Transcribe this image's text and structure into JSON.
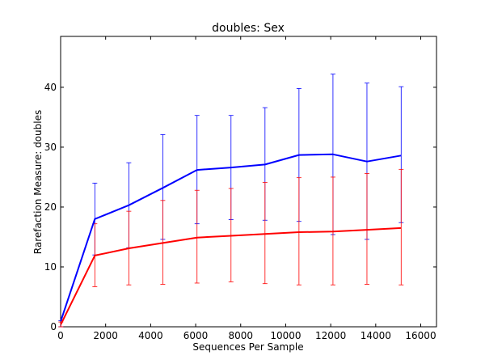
{
  "chart_data": {
    "type": "line",
    "title": "doubles: Sex",
    "xlabel": "Sequences Per Sample",
    "ylabel": "Rarefaction Measure: doubles",
    "xlim": [
      0,
      16700
    ],
    "ylim": [
      0,
      48.5
    ],
    "xticks": [
      0,
      2000,
      4000,
      6000,
      8000,
      10000,
      12000,
      14000,
      16000
    ],
    "yticks": [
      0,
      10,
      20,
      30,
      40
    ],
    "grid": false,
    "legend": "none",
    "x": [
      10,
      1520,
      3030,
      4540,
      6060,
      7570,
      9080,
      10590,
      12100,
      13610,
      15130
    ],
    "series": [
      {
        "color": "#0000ff",
        "values": [
          1.0,
          18.0,
          20.3,
          23.2,
          26.2,
          26.6,
          27.1,
          28.7,
          28.8,
          27.6,
          28.6
        ],
        "error_low": [
          0.0,
          12.0,
          13.2,
          14.6,
          17.2,
          17.9,
          17.8,
          17.6,
          15.4,
          14.6,
          17.4
        ],
        "error_high": [
          1.0,
          24.0,
          27.4,
          32.1,
          35.3,
          35.3,
          36.6,
          39.8,
          42.2,
          40.7,
          40.1
        ]
      },
      {
        "color": "#ff0000",
        "values": [
          0.4,
          11.9,
          13.1,
          14.0,
          14.9,
          15.2,
          15.5,
          15.8,
          15.9,
          16.2,
          16.5
        ],
        "error_low": [
          0.0,
          6.7,
          7.0,
          7.1,
          7.3,
          7.5,
          7.2,
          7.0,
          7.0,
          7.1,
          7.0
        ],
        "error_high": [
          0.8,
          17.2,
          19.3,
          21.1,
          22.8,
          23.1,
          24.1,
          24.9,
          25.0,
          25.6,
          26.3
        ]
      }
    ]
  }
}
